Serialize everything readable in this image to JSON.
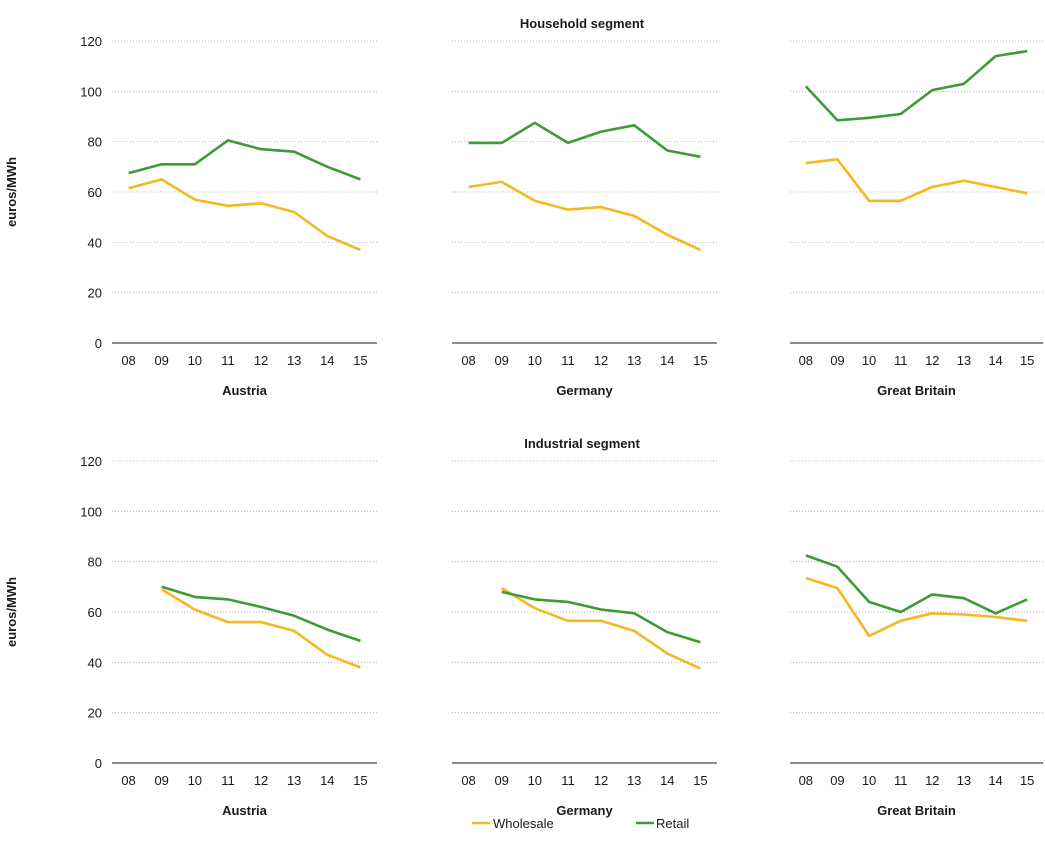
{
  "legend": [
    {
      "name": "Wholesale",
      "color": "#f5b822"
    },
    {
      "name": "Retail",
      "color": "#3d9b35"
    }
  ],
  "chart_data": [
    {
      "type": "line",
      "title": "Household segment",
      "country": "Austria",
      "ylabel": "euros/MWh",
      "ylim": [
        0,
        120
      ],
      "yticks": [
        0,
        20,
        40,
        60,
        80,
        100,
        120
      ],
      "grid": true,
      "categories": [
        "08",
        "09",
        "10",
        "11",
        "12",
        "13",
        "14",
        "15"
      ],
      "series": [
        {
          "name": "Wholesale",
          "color": "#f5b822",
          "values": [
            61.5,
            65,
            57,
            54.5,
            55.5,
            52,
            42.5,
            37
          ]
        },
        {
          "name": "Retail",
          "color": "#3d9b35",
          "values": [
            67.5,
            71,
            71,
            80.5,
            77,
            76,
            70,
            65
          ]
        }
      ]
    },
    {
      "type": "line",
      "title": "",
      "country": "Germany",
      "ylim": [
        0,
        120
      ],
      "grid": true,
      "categories": [
        "08",
        "09",
        "10",
        "11",
        "12",
        "13",
        "14",
        "15"
      ],
      "series": [
        {
          "name": "Wholesale",
          "color": "#f5b822",
          "values": [
            62,
            64,
            56.5,
            53,
            54,
            50.5,
            43,
            37
          ]
        },
        {
          "name": "Retail",
          "color": "#3d9b35",
          "values": [
            79.5,
            79.5,
            87.5,
            79.5,
            84,
            86.5,
            76.5,
            74
          ]
        }
      ]
    },
    {
      "type": "line",
      "title": "",
      "country": "Great Britain",
      "ylim": [
        0,
        120
      ],
      "grid": true,
      "categories": [
        "08",
        "09",
        "10",
        "11",
        "12",
        "13",
        "14",
        "15"
      ],
      "series": [
        {
          "name": "Wholesale",
          "color": "#f5b822",
          "values": [
            71.5,
            73,
            56.5,
            56.5,
            62,
            64.5,
            62,
            59.5
          ]
        },
        {
          "name": "Retail",
          "color": "#3d9b35",
          "values": [
            102,
            88.5,
            89.5,
            91,
            100.5,
            103,
            114,
            116
          ]
        }
      ]
    },
    {
      "type": "line",
      "title": "Industrial segment",
      "country": "Austria",
      "ylabel": "euros/MWh",
      "ylim": [
        0,
        120
      ],
      "yticks": [
        0,
        20,
        40,
        60,
        80,
        100,
        120
      ],
      "grid": true,
      "categories": [
        "08",
        "09",
        "10",
        "11",
        "12",
        "13",
        "14",
        "15"
      ],
      "series": [
        {
          "name": "Wholesale",
          "color": "#f5b822",
          "values": [
            null,
            69,
            61,
            56,
            56,
            52.5,
            43,
            38
          ]
        },
        {
          "name": "Retail",
          "color": "#3d9b35",
          "values": [
            null,
            70,
            66,
            65,
            62,
            58.5,
            53,
            48.5
          ]
        }
      ]
    },
    {
      "type": "line",
      "title": "",
      "country": "Germany",
      "ylim": [
        0,
        120
      ],
      "grid": true,
      "categories": [
        "08",
        "09",
        "10",
        "11",
        "12",
        "13",
        "14",
        "15"
      ],
      "series": [
        {
          "name": "Wholesale",
          "color": "#f5b822",
          "values": [
            null,
            69.5,
            61.5,
            56.5,
            56.5,
            52.5,
            43.5,
            37.5
          ]
        },
        {
          "name": "Retail",
          "color": "#3d9b35",
          "values": [
            null,
            68,
            65,
            64,
            61,
            59.5,
            52,
            48
          ]
        }
      ]
    },
    {
      "type": "line",
      "title": "",
      "country": "Great Britain",
      "ylim": [
        0,
        120
      ],
      "grid": true,
      "categories": [
        "08",
        "09",
        "10",
        "11",
        "12",
        "13",
        "14",
        "15"
      ],
      "series": [
        {
          "name": "Wholesale",
          "color": "#f5b822",
          "values": [
            73.5,
            69.5,
            50.5,
            56.5,
            59.5,
            59,
            58,
            56.5
          ]
        },
        {
          "name": "Retail",
          "color": "#3d9b35",
          "values": [
            82.5,
            78,
            64,
            60,
            67,
            65.5,
            59.5,
            65
          ]
        }
      ]
    }
  ]
}
